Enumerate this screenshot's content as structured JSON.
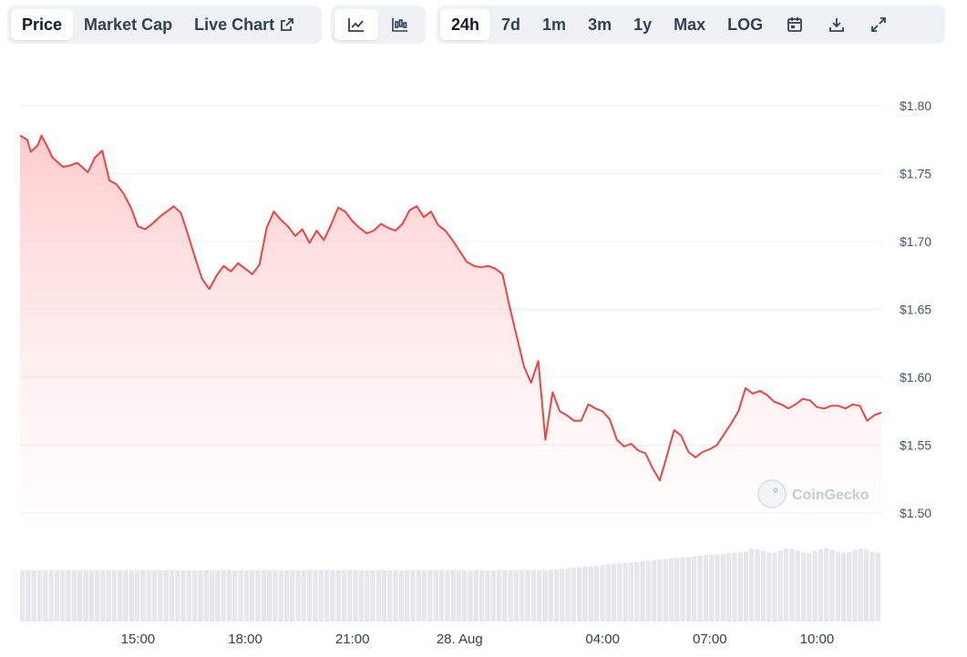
{
  "toolbar": {
    "tabs": [
      {
        "label": "Price",
        "active": true
      },
      {
        "label": "Market Cap",
        "active": false
      },
      {
        "label": "Live Chart",
        "active": false,
        "icon": "external-link-icon"
      }
    ],
    "chart_type_icons": [
      "line-chart-icon",
      "candlestick-icon"
    ],
    "ranges": [
      {
        "label": "24h",
        "active": true
      },
      {
        "label": "7d",
        "active": false
      },
      {
        "label": "1m",
        "active": false
      },
      {
        "label": "3m",
        "active": false
      },
      {
        "label": "1y",
        "active": false
      },
      {
        "label": "Max",
        "active": false
      },
      {
        "label": "LOG",
        "active": false
      }
    ],
    "action_icons": [
      "calendar-icon",
      "download-icon",
      "fullscreen-icon"
    ]
  },
  "watermark": "CoinGecko",
  "colors": {
    "line": "#ef4444",
    "fill_top": "#fecaca",
    "volume": "#e5e7eb",
    "grid": "#eceff3"
  },
  "chart_data": {
    "type": "area",
    "title": "",
    "xlabel": "",
    "ylabel": "",
    "ylim": [
      1.5,
      1.8
    ],
    "y_ticks": [
      "$1.80",
      "$1.75",
      "$1.70",
      "$1.65",
      "$1.60",
      "$1.55",
      "$1.50"
    ],
    "y_tick_values": [
      1.8,
      1.75,
      1.7,
      1.65,
      1.6,
      1.55,
      1.5
    ],
    "x_ticks": [
      "15:00",
      "18:00",
      "21:00",
      "28. Aug",
      "04:00",
      "07:00",
      "10:00"
    ],
    "x_tick_values": [
      3.0,
      6.0,
      9.0,
      12.0,
      16.0,
      19.0,
      22.0
    ],
    "x_unit": "hours since 12:00 on 27 Aug",
    "xlim": [
      -0.3,
      23.8
    ],
    "grid": true,
    "legend": "none",
    "series": [
      {
        "x": [
          -0.3,
          -0.1,
          0.0,
          0.2,
          0.3,
          0.5,
          0.6,
          0.9,
          1.1,
          1.3,
          1.6,
          1.8,
          2.0,
          2.2,
          2.4,
          2.6,
          2.8,
          3.0,
          3.2,
          3.4,
          3.6,
          3.8,
          4.0,
          4.2,
          4.4,
          4.6,
          4.8,
          5.0,
          5.2,
          5.4,
          5.6,
          5.8,
          6.0,
          6.2,
          6.4,
          6.6,
          6.8,
          7.0,
          7.2,
          7.4,
          7.6,
          7.8,
          8.0,
          8.2,
          8.4,
          8.6,
          8.8,
          9.0,
          9.2,
          9.4,
          9.6,
          9.8,
          10.0,
          10.2,
          10.4,
          10.6,
          10.8,
          11.0,
          11.2,
          11.4,
          11.6,
          11.8,
          12.0,
          12.2,
          12.4,
          12.6,
          12.8,
          13.0,
          13.2,
          13.4,
          13.6,
          13.8,
          14.0,
          14.2,
          14.4,
          14.6,
          14.8,
          15.0,
          15.2,
          15.4,
          15.6,
          15.8,
          16.0,
          16.2,
          16.4,
          16.6,
          16.8,
          17.0,
          17.2,
          17.4,
          17.6,
          17.8,
          18.0,
          18.2,
          18.4,
          18.6,
          18.8,
          19.0,
          19.2,
          19.4,
          19.6,
          19.8,
          20.0,
          20.2,
          20.4,
          20.6,
          20.8,
          21.0,
          21.2,
          21.4,
          21.6,
          21.8,
          22.0,
          22.2,
          22.4,
          22.6,
          22.8,
          23.0,
          23.2,
          23.4,
          23.6,
          23.8
        ],
        "y": [
          1.778,
          1.775,
          1.766,
          1.771,
          1.778,
          1.768,
          1.762,
          1.755,
          1.756,
          1.758,
          1.751,
          1.762,
          1.767,
          1.745,
          1.742,
          1.735,
          1.725,
          1.711,
          1.709,
          1.713,
          1.718,
          1.722,
          1.726,
          1.721,
          1.705,
          1.688,
          1.672,
          1.665,
          1.675,
          1.682,
          1.678,
          1.684,
          1.68,
          1.676,
          1.683,
          1.71,
          1.722,
          1.716,
          1.711,
          1.704,
          1.709,
          1.699,
          1.708,
          1.701,
          1.712,
          1.725,
          1.722,
          1.715,
          1.71,
          1.706,
          1.708,
          1.713,
          1.71,
          1.708,
          1.713,
          1.723,
          1.726,
          1.718,
          1.722,
          1.712,
          1.708,
          1.701,
          1.693,
          1.685,
          1.682,
          1.681,
          1.682,
          1.68,
          1.676,
          1.652,
          1.63,
          1.608,
          1.596,
          1.612,
          1.554,
          1.589,
          1.575,
          1.572,
          1.568,
          1.568,
          1.58,
          1.577,
          1.575,
          1.569,
          1.554,
          1.549,
          1.551,
          1.546,
          1.544,
          1.533,
          1.524,
          1.542,
          1.561,
          1.557,
          1.545,
          1.541,
          1.545,
          1.547,
          1.55,
          1.558,
          1.566,
          1.575,
          1.592,
          1.588,
          1.59,
          1.587,
          1.582,
          1.58,
          1.577,
          1.58,
          1.584,
          1.583,
          1.578,
          1.577,
          1.579,
          1.579,
          1.577,
          1.58,
          1.579,
          1.568,
          1.572,
          1.574
        ]
      }
    ],
    "volume_note": "Volume bars shown below price area; no volume scale printed"
  }
}
